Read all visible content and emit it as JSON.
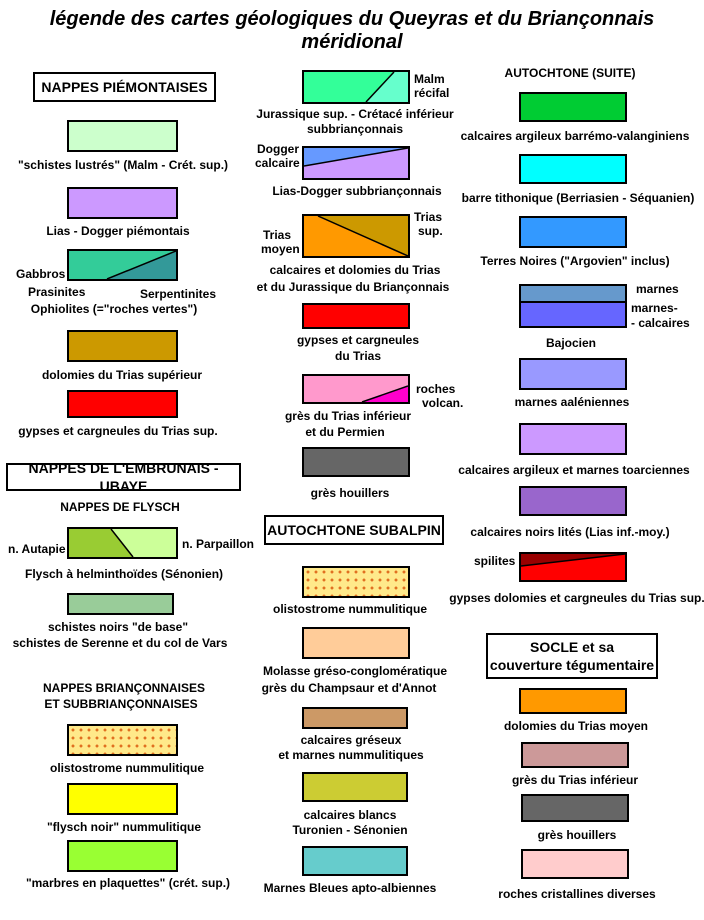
{
  "title": "légende des cartes géologiques du Queyras et du Briançonnais méridional",
  "col1": {
    "header_piemont": "NAPPES PIÉMONTAISES",
    "schistes_lustres": {
      "label": "\"schistes lustrés\" (Malm - Crét. sup.)",
      "color": "#ccffcc"
    },
    "lias_dogger_piemont": {
      "label": "Lias - Dogger piémontais",
      "color": "#cc99ff"
    },
    "ophiolites": {
      "left": "Gabbros",
      "bottom_left": "Prasinites",
      "bottom_right": "Serpentinites",
      "label": "Ophiolites (=\"roches vertes\")",
      "color_a": "#33cc99",
      "color_b": "#339999"
    },
    "dolomies_trias_sup": {
      "label": "dolomies du Trias supérieur",
      "color": "#cc9900"
    },
    "gypses_trias_sup": {
      "label": "gypses et cargneules du Trias sup.",
      "color": "#ff0000"
    },
    "header_embrunais": "NAPPES DE L'EMBRUNAIS - UBAYE",
    "sub_flysch": "NAPPES DE FLYSCH",
    "flysch_helm": {
      "left": "n. Autapie",
      "right": "n. Parpaillon",
      "label": "Flysch à helminthoïdes (Sénonien)",
      "color_a": "#99cc33",
      "color_b": "#ccff99"
    },
    "schistes_noirs": {
      "line1": "schistes noirs \"de base\"",
      "line2": "schistes de Serenne et du col de Vars",
      "color": "#99cc99"
    },
    "sub_brianconnaises_1": "NAPPES BRIANÇONNAISES",
    "sub_brianconnaises_2": "ET SUBBRIANÇONNAISES",
    "olistostrome": {
      "label": "olistostrome nummulitique"
    },
    "flysch_noir": {
      "label": "\"flysch noir\" nummulitique",
      "color": "#ffff00"
    },
    "marbres": {
      "label": "\"marbres en plaquettes\" (crét. sup.)",
      "color": "#99ff33"
    }
  },
  "col2": {
    "jurassique_sup": {
      "right1": "Malm",
      "right2": "récifal",
      "line1": "Jurassique sup. - Crétacé inférieur",
      "line2": "subbriançonnais",
      "color_a": "#33ff99",
      "color_b": "#66ffcc"
    },
    "lias_dogger_sub": {
      "left1": "Dogger",
      "left2": "calcaire",
      "label": "Lias-Dogger subbriançonnais",
      "color_a": "#6699ff",
      "color_b": "#cc99ff"
    },
    "calc_dolo_trias": {
      "left1": "Trias",
      "left2": "moyen",
      "right1": "Trias",
      "right2": "sup.",
      "line1": "calcaires et dolomies du Trias",
      "line2": "et du Jurassique du Briançonnais",
      "color_a": "#ff9900",
      "color_b": "#cc9900"
    },
    "gypses_trias": {
      "line1": "gypses et cargneules",
      "line2": "du Trias",
      "color": "#ff0000"
    },
    "gres_trias_inf": {
      "right1": "roches",
      "right2": "volcan.",
      "line1": "grès du Trias inférieur",
      "line2": "et du Permien",
      "color_a": "#ff99cc",
      "color_b": "#ff00cc"
    },
    "gres_houillers": {
      "label": "grès houillers",
      "color": "#666666"
    },
    "header_autochtone_subalpin": "AUTOCHTONE SUBALPIN",
    "olistostrome2": {
      "label": "olistostrome nummulitique"
    },
    "molasse": {
      "line1": "Molasse gréso-conglomératique",
      "line2": "grès du Champsaur et d'Annot",
      "color": "#ffcc99"
    },
    "calcaires_greseux": {
      "line1": "calcaires gréseux",
      "line2": "et marnes nummulitiques",
      "color": "#cc9966"
    },
    "calcaires_blancs": {
      "line1": "calcaires blancs",
      "line2": "Turonien - Sénonien",
      "color": "#cccc33"
    },
    "marnes_bleues": {
      "label": "Marnes Bleues apto-albiennes",
      "color": "#66cccc"
    }
  },
  "col3": {
    "sub_autochtone_suite": "AUTOCHTONE (SUITE)",
    "calc_barremo": {
      "label": "calcaires argileux barrémo-valanginiens",
      "color": "#00cc33"
    },
    "barre_tithonique": {
      "label": "barre tithonique (Berriasien - Séquanien)",
      "color": "#00ffff"
    },
    "terres_noires": {
      "label": "Terres Noires (\"Argovien\" inclus)",
      "color": "#3399ff"
    },
    "bajocien": {
      "right1": "marnes",
      "right2": "marnes-",
      "right3": "- calcaires",
      "label": "Bajocien",
      "color_a": "#6699cc",
      "color_b": "#6666ff"
    },
    "marnes_aaleniennes": {
      "label": "marnes aaléniennes",
      "color": "#9999ff"
    },
    "calc_toarciennes": {
      "label": "calcaires argileux et marnes toarciennes",
      "color": "#cc99ff"
    },
    "calc_noirs_lites": {
      "label": "calcaires noirs lités (Lias inf.-moy.)",
      "color": "#9966cc"
    },
    "gypses_dolomies": {
      "left": "spilites",
      "label": "gypses dolomies et cargneules du Trias sup.",
      "color_a": "#990000",
      "color_b": "#ff0000"
    },
    "header_socle_1": "SOCLE et sa",
    "header_socle_2": "couverture tégumentaire",
    "dolomies_trias_moyen": {
      "label": "dolomies du Trias moyen",
      "color": "#ff9900"
    },
    "gres_trias_inf": {
      "label": "grès du Trias inférieur",
      "color": "#cc9999"
    },
    "gres_houillers": {
      "label": "grès houillers",
      "color": "#666666"
    },
    "roches_cristallines": {
      "label": "roches cristallines diverses",
      "color": "#ffcccc"
    }
  }
}
